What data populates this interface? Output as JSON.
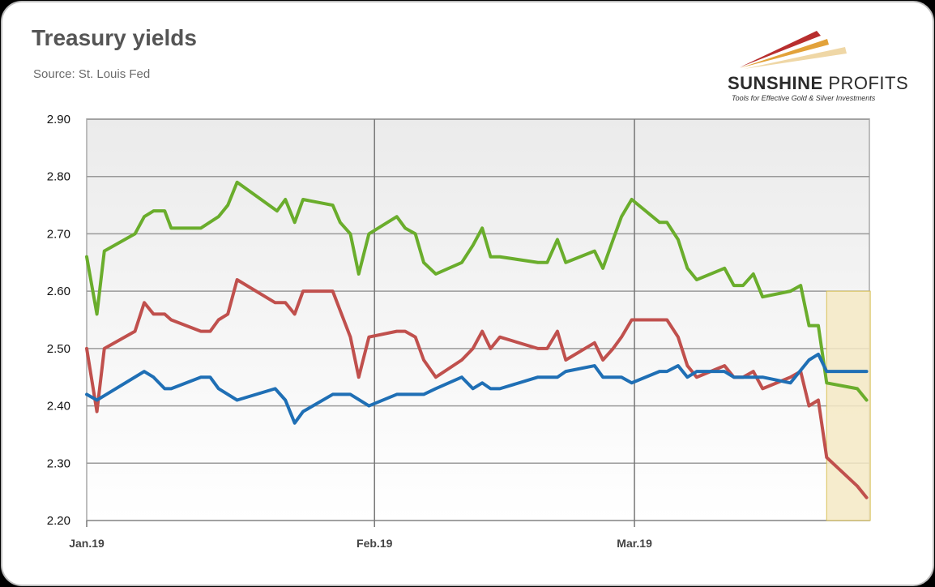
{
  "header": {
    "title": "Treasury yields",
    "source": "Source: St. Louis Fed"
  },
  "logo": {
    "name_bold": "SUNSHINE",
    "name_light": "PROFITS",
    "tagline": "Tools for Effective Gold & Silver Investments"
  },
  "chart_data": {
    "type": "line",
    "title": "Treasury yields",
    "subtitle": "Source: St. Louis Fed",
    "xlabel": "",
    "ylabel": "",
    "x_unit": "days since Jan 1, 2019",
    "xlim": [
      0,
      84.3
    ],
    "ylim": [
      2.2,
      2.9
    ],
    "yticks": [
      "2.20",
      "2.30",
      "2.40",
      "2.50",
      "2.60",
      "2.70",
      "2.80",
      "2.90"
    ],
    "yticks_values": [
      2.2,
      2.3,
      2.4,
      2.5,
      2.6,
      2.7,
      2.8,
      2.9
    ],
    "xticks": [
      {
        "label": "Jan.19",
        "x": 0
      },
      {
        "label": "Feb.19",
        "x": 31
      },
      {
        "label": "Mar.19",
        "x": 59
      }
    ],
    "grid": true,
    "highlight": {
      "x": [
        79.7,
        84.4
      ],
      "y": [
        2.2,
        2.6
      ],
      "color": "#f5e9c4"
    },
    "series": [
      {
        "name": "green",
        "color": "#6aad2c",
        "points": [
          [
            0,
            2.66
          ],
          [
            1.1,
            2.56
          ],
          [
            1.9,
            2.67
          ],
          [
            5.2,
            2.7
          ],
          [
            6.2,
            2.73
          ],
          [
            7.2,
            2.74
          ],
          [
            8.4,
            2.74
          ],
          [
            9.1,
            2.71
          ],
          [
            12.3,
            2.71
          ],
          [
            14.2,
            2.73
          ],
          [
            15.2,
            2.75
          ],
          [
            16.2,
            2.79
          ],
          [
            20.5,
            2.74
          ],
          [
            21.4,
            2.76
          ],
          [
            22.4,
            2.72
          ],
          [
            23.3,
            2.76
          ],
          [
            26.5,
            2.75
          ],
          [
            27.3,
            2.72
          ],
          [
            28.4,
            2.7
          ],
          [
            29.3,
            2.63
          ],
          [
            30.4,
            2.7
          ],
          [
            33.4,
            2.73
          ],
          [
            34.3,
            2.71
          ],
          [
            35.4,
            2.7
          ],
          [
            36.3,
            2.65
          ],
          [
            37.6,
            2.63
          ],
          [
            40.4,
            2.65
          ],
          [
            41.6,
            2.68
          ],
          [
            42.6,
            2.71
          ],
          [
            43.5,
            2.66
          ],
          [
            44.5,
            2.66
          ],
          [
            48.6,
            2.65
          ],
          [
            49.6,
            2.65
          ],
          [
            50.7,
            2.69
          ],
          [
            51.6,
            2.65
          ],
          [
            54.7,
            2.67
          ],
          [
            55.6,
            2.64
          ],
          [
            56.7,
            2.69
          ],
          [
            57.6,
            2.73
          ],
          [
            58.7,
            2.76
          ],
          [
            61.7,
            2.72
          ],
          [
            62.5,
            2.72
          ],
          [
            63.7,
            2.69
          ],
          [
            64.7,
            2.64
          ],
          [
            65.7,
            2.62
          ],
          [
            68.7,
            2.64
          ],
          [
            69.7,
            2.61
          ],
          [
            70.7,
            2.61
          ],
          [
            71.8,
            2.63
          ],
          [
            72.8,
            2.59
          ],
          [
            75.8,
            2.6
          ],
          [
            76.9,
            2.61
          ],
          [
            77.8,
            2.54
          ],
          [
            78.8,
            2.54
          ],
          [
            79.7,
            2.44
          ],
          [
            83,
            2.43
          ],
          [
            84,
            2.41
          ]
        ]
      },
      {
        "name": "red",
        "color": "#c0504d",
        "points": [
          [
            0,
            2.5
          ],
          [
            1.1,
            2.39
          ],
          [
            1.9,
            2.5
          ],
          [
            5.2,
            2.53
          ],
          [
            6.2,
            2.58
          ],
          [
            7.2,
            2.56
          ],
          [
            8.4,
            2.56
          ],
          [
            9.1,
            2.55
          ],
          [
            12.3,
            2.53
          ],
          [
            13.3,
            2.53
          ],
          [
            14.2,
            2.55
          ],
          [
            15.2,
            2.56
          ],
          [
            16.2,
            2.62
          ],
          [
            20.3,
            2.58
          ],
          [
            21.4,
            2.58
          ],
          [
            22.4,
            2.56
          ],
          [
            23.3,
            2.6
          ],
          [
            26.5,
            2.6
          ],
          [
            28.4,
            2.52
          ],
          [
            29.3,
            2.45
          ],
          [
            30.4,
            2.52
          ],
          [
            33.4,
            2.53
          ],
          [
            34.3,
            2.53
          ],
          [
            35.4,
            2.52
          ],
          [
            36.3,
            2.48
          ],
          [
            37.6,
            2.45
          ],
          [
            40.4,
            2.48
          ],
          [
            41.6,
            2.5
          ],
          [
            42.6,
            2.53
          ],
          [
            43.5,
            2.5
          ],
          [
            44.5,
            2.52
          ],
          [
            48.6,
            2.5
          ],
          [
            49.6,
            2.5
          ],
          [
            50.7,
            2.53
          ],
          [
            51.6,
            2.48
          ],
          [
            54.7,
            2.51
          ],
          [
            55.6,
            2.48
          ],
          [
            56.7,
            2.5
          ],
          [
            57.6,
            2.52
          ],
          [
            58.7,
            2.55
          ],
          [
            62.5,
            2.55
          ],
          [
            63.7,
            2.52
          ],
          [
            64.7,
            2.47
          ],
          [
            65.7,
            2.45
          ],
          [
            68.7,
            2.47
          ],
          [
            69.7,
            2.45
          ],
          [
            70.7,
            2.45
          ],
          [
            71.8,
            2.46
          ],
          [
            72.8,
            2.43
          ],
          [
            75.8,
            2.45
          ],
          [
            76.9,
            2.46
          ],
          [
            77.8,
            2.4
          ],
          [
            78.8,
            2.41
          ],
          [
            79.7,
            2.31
          ],
          [
            83,
            2.26
          ],
          [
            84,
            2.24
          ]
        ]
      },
      {
        "name": "blue",
        "color": "#1f6fb5",
        "points": [
          [
            0,
            2.42
          ],
          [
            1.1,
            2.41
          ],
          [
            6.2,
            2.46
          ],
          [
            7.2,
            2.45
          ],
          [
            8.4,
            2.43
          ],
          [
            9.1,
            2.43
          ],
          [
            12.3,
            2.45
          ],
          [
            13.3,
            2.45
          ],
          [
            14.2,
            2.43
          ],
          [
            16.2,
            2.41
          ],
          [
            20.3,
            2.43
          ],
          [
            21.4,
            2.41
          ],
          [
            22.4,
            2.37
          ],
          [
            23.3,
            2.39
          ],
          [
            26.5,
            2.42
          ],
          [
            28.4,
            2.42
          ],
          [
            30.4,
            2.4
          ],
          [
            33.4,
            2.42
          ],
          [
            36.3,
            2.42
          ],
          [
            37.6,
            2.43
          ],
          [
            40.4,
            2.45
          ],
          [
            41.6,
            2.43
          ],
          [
            42.6,
            2.44
          ],
          [
            43.5,
            2.43
          ],
          [
            44.5,
            2.43
          ],
          [
            48.6,
            2.45
          ],
          [
            50.7,
            2.45
          ],
          [
            51.6,
            2.46
          ],
          [
            54.7,
            2.47
          ],
          [
            55.6,
            2.45
          ],
          [
            57.6,
            2.45
          ],
          [
            58.7,
            2.44
          ],
          [
            61.7,
            2.46
          ],
          [
            62.5,
            2.46
          ],
          [
            63.7,
            2.47
          ],
          [
            64.7,
            2.45
          ],
          [
            65.7,
            2.46
          ],
          [
            68.7,
            2.46
          ],
          [
            69.7,
            2.45
          ],
          [
            72.8,
            2.45
          ],
          [
            75.8,
            2.44
          ],
          [
            77.8,
            2.48
          ],
          [
            78.8,
            2.49
          ],
          [
            79.7,
            2.46
          ],
          [
            84,
            2.46
          ]
        ]
      }
    ]
  }
}
